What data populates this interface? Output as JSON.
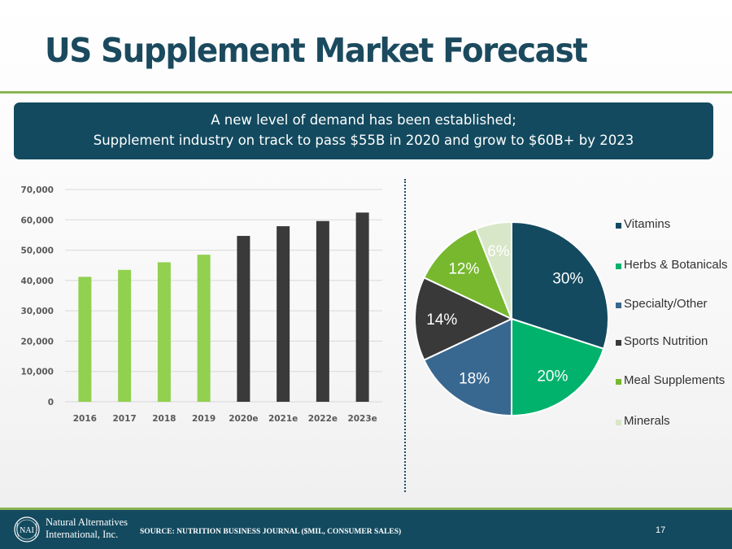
{
  "title": "US Supplement Market Forecast",
  "banner": {
    "line1": "A new level of demand has been established;",
    "line2": "Supplement industry on track to pass $55B in 2020 and grow to $60B+ by 2023"
  },
  "footer": {
    "company_line1": "Natural Alternatives",
    "company_line2": "International, Inc.",
    "logo_text": "NAI",
    "source": "SOURCE: NUTRITION BUSINESS JOURNAL ($MIL, CONSUMER SALES)",
    "page_number": "17"
  },
  "colors": {
    "title": "#1b4a5e",
    "banner_bg": "#134a5f",
    "accent_green": "#8cb554"
  },
  "chart_data": [
    {
      "type": "bar",
      "categories": [
        "2016",
        "2017",
        "2018",
        "2019",
        "2020e",
        "2021e",
        "2022e",
        "2023e"
      ],
      "values": [
        41200,
        43500,
        46000,
        48500,
        54700,
        57900,
        59600,
        62400
      ],
      "bar_colors": [
        "#92d050",
        "#92d050",
        "#92d050",
        "#92d050",
        "#3a3a3a",
        "#3a3a3a",
        "#3a3a3a",
        "#3a3a3a"
      ],
      "ylim": [
        0,
        70000
      ],
      "yticks": [
        0,
        10000,
        20000,
        30000,
        40000,
        50000,
        60000,
        70000
      ],
      "ytick_labels": [
        "0",
        "10,000",
        "20,000",
        "30,000",
        "40,000",
        "50,000",
        "60,000",
        "70,000"
      ],
      "grid": true,
      "title": "",
      "xlabel": "",
      "ylabel": ""
    },
    {
      "type": "pie",
      "slices": [
        {
          "label": "Vitamins",
          "value": 30,
          "display": "30%",
          "color": "#134a5f"
        },
        {
          "label": "Herbs & Botanicals",
          "value": 20,
          "display": "20%",
          "color": "#00b26c"
        },
        {
          "label": "Specialty/Other",
          "value": 18,
          "display": "18%",
          "color": "#386890"
        },
        {
          "label": "Sports Nutrition",
          "value": 14,
          "display": "14%",
          "color": "#393939"
        },
        {
          "label": "Meal Supplements",
          "value": 12,
          "display": "12%",
          "color": "#77b82e"
        },
        {
          "label": "Minerals",
          "value": 6,
          "display": "6%",
          "color": "#d7e7c8"
        }
      ],
      "legend_position": "right"
    }
  ]
}
